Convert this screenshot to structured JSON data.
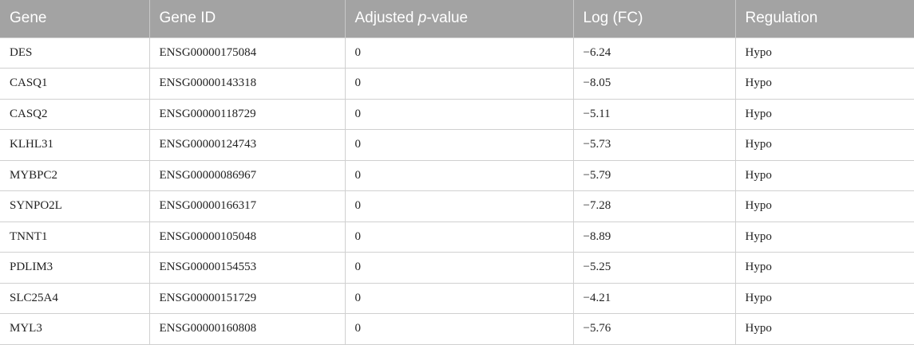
{
  "table": {
    "columns": [
      "Gene",
      "Gene ID",
      {
        "prefix": "Adjusted",
        "italic": "p",
        "suffix": "-value"
      },
      "Log (FC)",
      "Regulation"
    ],
    "rows": [
      [
        "DES",
        "ENSG00000175084",
        "0",
        "−6.24",
        "Hypo"
      ],
      [
        "CASQ1",
        "ENSG00000143318",
        "0",
        "−8.05",
        "Hypo"
      ],
      [
        "CASQ2",
        "ENSG00000118729",
        "0",
        "−5.11",
        "Hypo"
      ],
      [
        "KLHL31",
        "ENSG00000124743",
        "0",
        "−5.73",
        "Hypo"
      ],
      [
        "MYBPC2",
        "ENSG00000086967",
        "0",
        "−5.79",
        "Hypo"
      ],
      [
        "SYNPO2L",
        "ENSG00000166317",
        "0",
        "−7.28",
        "Hypo"
      ],
      [
        "TNNT1",
        "ENSG00000105048",
        "0",
        "−8.89",
        "Hypo"
      ],
      [
        "PDLIM3",
        "ENSG00000154553",
        "0",
        "−5.25",
        "Hypo"
      ],
      [
        "SLC25A4",
        "ENSG00000151729",
        "0",
        "−4.21",
        "Hypo"
      ],
      [
        "MYL3",
        "ENSG00000160808",
        "0",
        "−5.76",
        "Hypo"
      ]
    ]
  }
}
